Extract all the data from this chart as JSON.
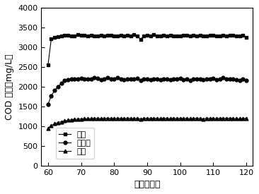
{
  "xlabel": "时间（天）",
  "ylabel": "COD 浓度（mg/L）",
  "xlim": [
    58,
    122
  ],
  "ylim": [
    0,
    4000
  ],
  "xticks": [
    60,
    70,
    80,
    90,
    100,
    110,
    120
  ],
  "yticks": [
    0,
    500,
    1000,
    1500,
    2000,
    2500,
    3000,
    3500,
    4000
  ],
  "legend_labels": [
    "进水",
    "未添加",
    "添加"
  ],
  "line_color": "#000000",
  "series": {
    "jinshui": {
      "x": [
        60,
        61,
        62,
        63,
        64,
        65,
        66,
        67,
        68,
        69,
        70,
        71,
        72,
        73,
        74,
        75,
        76,
        77,
        78,
        79,
        80,
        81,
        82,
        83,
        84,
        85,
        86,
        87,
        88,
        89,
        90,
        91,
        92,
        93,
        94,
        95,
        96,
        97,
        98,
        99,
        100,
        101,
        102,
        103,
        104,
        105,
        106,
        107,
        108,
        109,
        110,
        111,
        112,
        113,
        114,
        115,
        116,
        117,
        118,
        119,
        120
      ],
      "y": [
        2550,
        3220,
        3250,
        3270,
        3280,
        3300,
        3310,
        3290,
        3280,
        3320,
        3310,
        3300,
        3290,
        3300,
        3280,
        3290,
        3300,
        3290,
        3310,
        3300,
        3280,
        3290,
        3300,
        3290,
        3310,
        3280,
        3320,
        3290,
        3200,
        3280,
        3300,
        3290,
        3320,
        3290,
        3280,
        3310,
        3290,
        3300,
        3290,
        3280,
        3290,
        3300,
        3310,
        3280,
        3310,
        3290,
        3300,
        3280,
        3290,
        3300,
        3310,
        3290,
        3280,
        3300,
        3290,
        3310,
        3300,
        3290,
        3280,
        3300,
        3250
      ],
      "marker": "s",
      "markersize": 3.5
    },
    "weitianjia": {
      "x": [
        60,
        61,
        62,
        63,
        64,
        65,
        66,
        67,
        68,
        69,
        70,
        71,
        72,
        73,
        74,
        75,
        76,
        77,
        78,
        79,
        80,
        81,
        82,
        83,
        84,
        85,
        86,
        87,
        88,
        89,
        90,
        91,
        92,
        93,
        94,
        95,
        96,
        97,
        98,
        99,
        100,
        101,
        102,
        103,
        104,
        105,
        106,
        107,
        108,
        109,
        110,
        111,
        112,
        113,
        114,
        115,
        116,
        117,
        118,
        119,
        120
      ],
      "y": [
        1550,
        1770,
        1900,
        2000,
        2080,
        2150,
        2180,
        2200,
        2200,
        2200,
        2210,
        2190,
        2190,
        2200,
        2220,
        2210,
        2180,
        2200,
        2220,
        2200,
        2190,
        2220,
        2200,
        2180,
        2200,
        2190,
        2200,
        2210,
        2150,
        2190,
        2200,
        2180,
        2200,
        2190,
        2180,
        2200,
        2190,
        2180,
        2200,
        2190,
        2210,
        2180,
        2200,
        2150,
        2190,
        2200,
        2190,
        2170,
        2200,
        2190,
        2210,
        2180,
        2200,
        2220,
        2190,
        2200,
        2190,
        2180,
        2150,
        2200,
        2150
      ],
      "marker": "o",
      "markersize": 3.5
    },
    "tianjia": {
      "x": [
        60,
        61,
        62,
        63,
        64,
        65,
        66,
        67,
        68,
        69,
        70,
        71,
        72,
        73,
        74,
        75,
        76,
        77,
        78,
        79,
        80,
        81,
        82,
        83,
        84,
        85,
        86,
        87,
        88,
        89,
        90,
        91,
        92,
        93,
        94,
        95,
        96,
        97,
        98,
        99,
        100,
        101,
        102,
        103,
        104,
        105,
        106,
        107,
        108,
        109,
        110,
        111,
        112,
        113,
        114,
        115,
        116,
        117,
        118,
        119,
        120
      ],
      "y": [
        950,
        1010,
        1060,
        1090,
        1110,
        1130,
        1150,
        1160,
        1170,
        1175,
        1180,
        1185,
        1190,
        1190,
        1195,
        1195,
        1190,
        1195,
        1200,
        1195,
        1190,
        1200,
        1195,
        1190,
        1200,
        1195,
        1190,
        1200,
        1180,
        1195,
        1200,
        1190,
        1200,
        1195,
        1190,
        1200,
        1195,
        1190,
        1200,
        1190,
        1200,
        1190,
        1200,
        1185,
        1195,
        1200,
        1195,
        1180,
        1200,
        1195,
        1200,
        1190,
        1200,
        1200,
        1195,
        1200,
        1195,
        1190,
        1185,
        1195,
        1200
      ],
      "marker": "^",
      "markersize": 3.5
    }
  },
  "figsize": [
    3.66,
    2.75
  ],
  "dpi": 100
}
